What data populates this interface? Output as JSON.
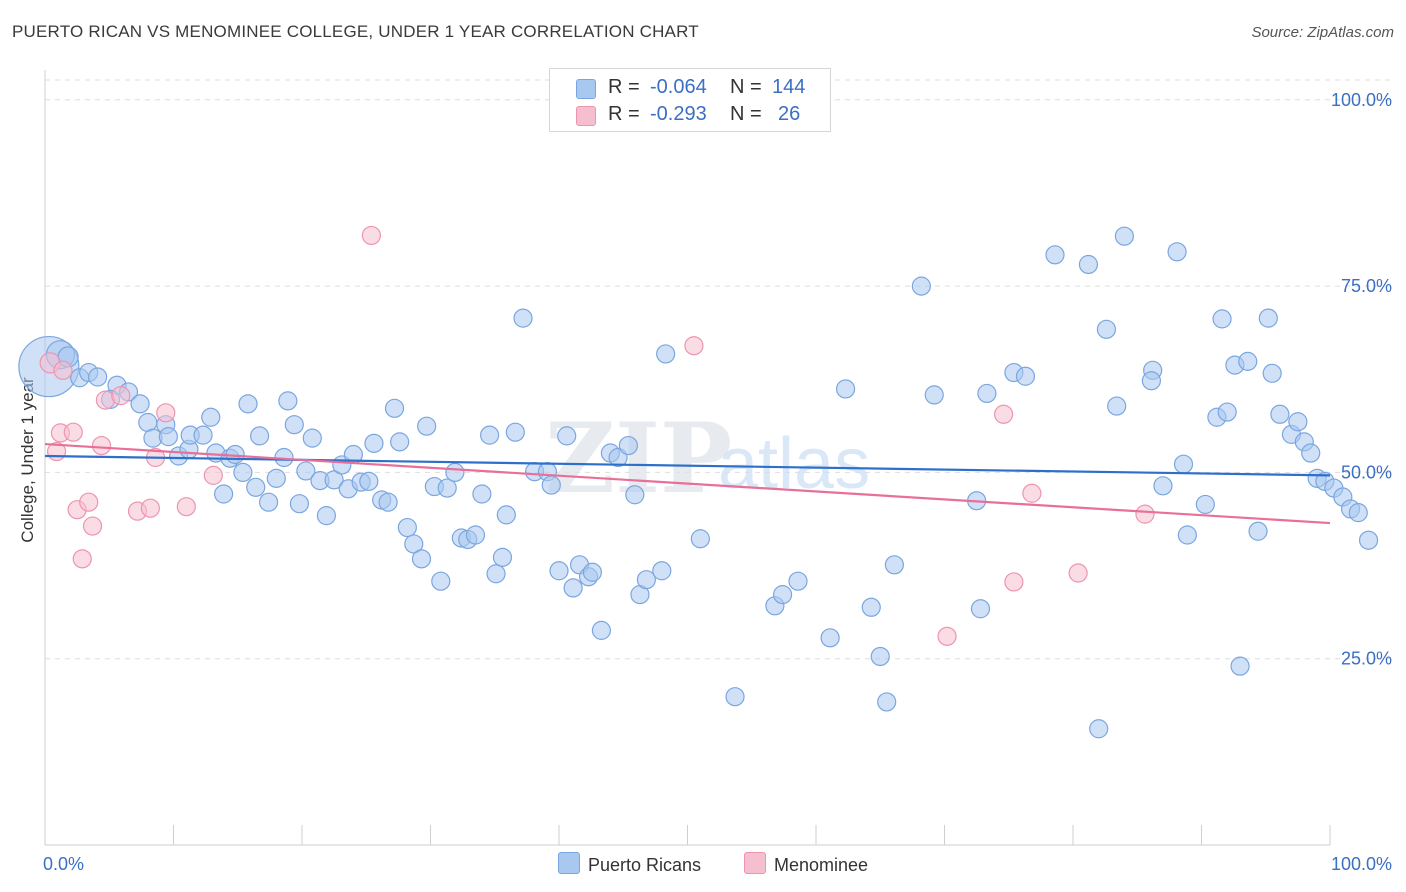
{
  "title": "PUERTO RICAN VS MENOMINEE COLLEGE, UNDER 1 YEAR CORRELATION CHART",
  "source": "Source: ZipAtlas.com",
  "colors": {
    "blue_fill": "#a9c8f0",
    "blue_stroke": "#7aa6e0",
    "blue_line": "#2e6fc9",
    "pink_fill": "#f6bfcf",
    "pink_stroke": "#ee94b0",
    "pink_line": "#e86f98",
    "axis_text": "#3b6fc4",
    "grid": "#dddddd"
  },
  "legend": {
    "r_label": "R =",
    "n_label": "N =",
    "series": [
      {
        "r": "-0.064",
        "n": "144"
      },
      {
        "r": "-0.293",
        "n": "26"
      }
    ]
  },
  "watermark": {
    "zip": "ZIP",
    "atlas": "atlas"
  },
  "chart_data": {
    "type": "scatter",
    "title": "PUERTO RICAN VS MENOMINEE COLLEGE, UNDER 1 YEAR CORRELATION CHART",
    "xlabel": "",
    "ylabel": "College, Under 1 year",
    "xlim": [
      0,
      100
    ],
    "ylim": [
      0,
      104
    ],
    "x_tick_labels": [
      "0.0%",
      "100.0%"
    ],
    "y_ticks": [
      25,
      50,
      75,
      100
    ],
    "y_tick_labels": [
      "25.0%",
      "50.0%",
      "75.0%",
      "100.0%"
    ],
    "grid": true,
    "legend_position": "bottom",
    "series": [
      {
        "name": "Puerto Ricans",
        "r": -0.064,
        "n": 144,
        "trend": {
          "x": [
            0,
            100
          ],
          "y": [
            52.2,
            49.6
          ]
        },
        "points": [
          [
            0.3,
            64.2,
            30
          ],
          [
            1.2,
            65.8,
            14
          ],
          [
            1.8,
            65.5,
            10
          ],
          [
            2.7,
            62.7,
            9
          ],
          [
            3.4,
            63.4,
            9
          ],
          [
            4.1,
            62.8,
            9
          ],
          [
            5.6,
            61.7,
            9
          ],
          [
            5.1,
            59.8,
            9
          ],
          [
            6.5,
            60.8,
            9
          ],
          [
            7.4,
            59.2,
            9
          ],
          [
            8.0,
            56.7,
            9
          ],
          [
            8.4,
            54.6,
            9
          ],
          [
            9.4,
            56.4,
            9
          ],
          [
            9.6,
            54.8,
            9
          ],
          [
            10.4,
            52.2,
            9
          ],
          [
            11.2,
            53.1,
            9
          ],
          [
            11.3,
            55.0,
            9
          ],
          [
            12.3,
            55.0,
            9
          ],
          [
            12.9,
            57.4,
            9
          ],
          [
            13.3,
            52.6,
            9
          ],
          [
            13.9,
            47.1,
            9
          ],
          [
            14.4,
            51.9,
            9
          ],
          [
            14.8,
            52.4,
            9
          ],
          [
            15.4,
            50.0,
            9
          ],
          [
            15.8,
            59.2,
            9
          ],
          [
            16.4,
            48.0,
            9
          ],
          [
            16.7,
            54.9,
            9
          ],
          [
            17.4,
            46.0,
            9
          ],
          [
            18.0,
            49.2,
            9
          ],
          [
            18.6,
            52.0,
            9
          ],
          [
            18.9,
            59.6,
            9
          ],
          [
            19.4,
            56.4,
            9
          ],
          [
            19.8,
            45.8,
            9
          ],
          [
            20.3,
            50.2,
            9
          ],
          [
            20.8,
            54.6,
            9
          ],
          [
            21.4,
            48.9,
            9
          ],
          [
            21.9,
            44.2,
            9
          ],
          [
            22.5,
            49.0,
            9
          ],
          [
            23.1,
            51.0,
            9
          ],
          [
            23.6,
            47.8,
            9
          ],
          [
            24.0,
            52.4,
            9
          ],
          [
            24.6,
            48.7,
            9
          ],
          [
            25.2,
            48.8,
            9
          ],
          [
            25.6,
            53.9,
            9
          ],
          [
            26.2,
            46.3,
            9
          ],
          [
            26.7,
            46.0,
            9
          ],
          [
            27.2,
            58.6,
            9
          ],
          [
            27.6,
            54.1,
            9
          ],
          [
            28.2,
            42.6,
            9
          ],
          [
            28.7,
            40.4,
            9
          ],
          [
            29.3,
            38.4,
            9
          ],
          [
            29.7,
            56.2,
            9
          ],
          [
            30.3,
            48.1,
            9
          ],
          [
            30.8,
            35.4,
            9
          ],
          [
            31.3,
            47.9,
            9
          ],
          [
            31.9,
            50.0,
            9
          ],
          [
            32.4,
            41.2,
            9
          ],
          [
            32.9,
            41.0,
            9
          ],
          [
            33.5,
            41.6,
            9
          ],
          [
            34.0,
            47.1,
            9
          ],
          [
            34.6,
            55.0,
            9
          ],
          [
            35.1,
            36.4,
            9
          ],
          [
            35.6,
            38.6,
            9
          ],
          [
            35.9,
            44.3,
            9
          ],
          [
            36.6,
            55.4,
            9
          ],
          [
            37.2,
            70.7,
            9
          ],
          [
            38.1,
            50.1,
            9
          ],
          [
            39.1,
            50.1,
            9
          ],
          [
            39.4,
            48.3,
            9
          ],
          [
            40.0,
            36.8,
            9
          ],
          [
            40.6,
            54.9,
            9
          ],
          [
            41.1,
            34.5,
            9
          ],
          [
            41.6,
            37.6,
            9
          ],
          [
            42.3,
            36.0,
            9
          ],
          [
            42.6,
            36.6,
            9
          ],
          [
            43.3,
            28.8,
            9
          ],
          [
            44.0,
            52.6,
            9
          ],
          [
            44.6,
            52.0,
            9
          ],
          [
            45.4,
            53.6,
            9
          ],
          [
            45.9,
            47.0,
            9
          ],
          [
            46.3,
            33.6,
            9
          ],
          [
            46.8,
            35.6,
            9
          ],
          [
            48.0,
            36.8,
            9
          ],
          [
            48.3,
            65.9,
            9
          ],
          [
            51.0,
            41.1,
            9
          ],
          [
            53.7,
            19.9,
            9
          ],
          [
            56.8,
            32.1,
            9
          ],
          [
            57.4,
            33.6,
            9
          ],
          [
            58.6,
            35.4,
            9
          ],
          [
            61.1,
            27.8,
            9
          ],
          [
            62.3,
            61.2,
            9
          ],
          [
            64.3,
            31.9,
            9
          ],
          [
            65.0,
            25.3,
            9
          ],
          [
            65.5,
            19.2,
            9
          ],
          [
            66.1,
            37.6,
            9
          ],
          [
            68.2,
            75.0,
            9
          ],
          [
            69.2,
            60.4,
            9
          ],
          [
            72.5,
            46.2,
            9
          ],
          [
            72.8,
            31.7,
            9
          ],
          [
            73.3,
            60.6,
            9
          ],
          [
            75.4,
            63.4,
            9
          ],
          [
            76.3,
            62.9,
            9
          ],
          [
            78.6,
            79.2,
            9
          ],
          [
            81.2,
            77.9,
            9
          ],
          [
            82.0,
            15.6,
            9
          ],
          [
            82.6,
            69.2,
            9
          ],
          [
            83.4,
            58.9,
            9
          ],
          [
            84.0,
            81.7,
            9
          ],
          [
            86.2,
            63.7,
            9
          ],
          [
            86.1,
            62.3,
            9
          ],
          [
            87.0,
            48.2,
            9
          ],
          [
            88.1,
            79.6,
            9
          ],
          [
            88.6,
            51.1,
            9
          ],
          [
            88.9,
            41.6,
            9
          ],
          [
            90.3,
            45.7,
            9
          ],
          [
            91.2,
            57.4,
            9
          ],
          [
            91.6,
            70.6,
            9
          ],
          [
            92.0,
            58.1,
            9
          ],
          [
            92.6,
            64.4,
            9
          ],
          [
            93.0,
            24.0,
            9
          ],
          [
            93.6,
            64.9,
            9
          ],
          [
            94.4,
            42.1,
            9
          ],
          [
            95.2,
            70.7,
            9
          ],
          [
            95.5,
            63.3,
            9
          ],
          [
            96.1,
            57.8,
            9
          ],
          [
            97.0,
            55.1,
            9
          ],
          [
            97.5,
            56.8,
            9
          ],
          [
            98.0,
            54.1,
            9
          ],
          [
            98.5,
            52.6,
            9
          ],
          [
            99.0,
            49.2,
            9
          ],
          [
            99.6,
            48.8,
            9
          ],
          [
            100.3,
            47.9,
            9
          ],
          [
            101.0,
            46.7,
            9
          ],
          [
            101.6,
            45.1,
            9
          ],
          [
            102.2,
            44.6,
            9
          ],
          [
            103.0,
            40.9,
            9
          ]
        ]
      },
      {
        "name": "Menominee",
        "r": -0.293,
        "n": 26,
        "trend": {
          "x": [
            0,
            100
          ],
          "y": [
            53.8,
            43.2
          ]
        },
        "points": [
          [
            0.4,
            64.7,
            10
          ],
          [
            0.9,
            52.8,
            9
          ],
          [
            1.2,
            55.3,
            9
          ],
          [
            1.4,
            63.7,
            9
          ],
          [
            2.2,
            55.4,
            9
          ],
          [
            2.5,
            45.0,
            9
          ],
          [
            2.9,
            38.4,
            9
          ],
          [
            3.4,
            46.0,
            9
          ],
          [
            3.7,
            42.8,
            9
          ],
          [
            4.4,
            53.6,
            9
          ],
          [
            4.7,
            59.7,
            9
          ],
          [
            5.9,
            60.3,
            9
          ],
          [
            7.2,
            44.8,
            9
          ],
          [
            8.2,
            45.2,
            9
          ],
          [
            8.6,
            52.0,
            9
          ],
          [
            9.4,
            58.0,
            9
          ],
          [
            11.0,
            45.4,
            9
          ],
          [
            13.1,
            49.6,
            9
          ],
          [
            25.4,
            81.8,
            9
          ],
          [
            50.5,
            67.0,
            9
          ],
          [
            70.2,
            28.0,
            9
          ],
          [
            74.6,
            57.8,
            9
          ],
          [
            75.4,
            35.3,
            9
          ],
          [
            76.8,
            47.2,
            9
          ],
          [
            80.4,
            36.5,
            9
          ],
          [
            85.6,
            44.4,
            9
          ]
        ]
      }
    ]
  }
}
